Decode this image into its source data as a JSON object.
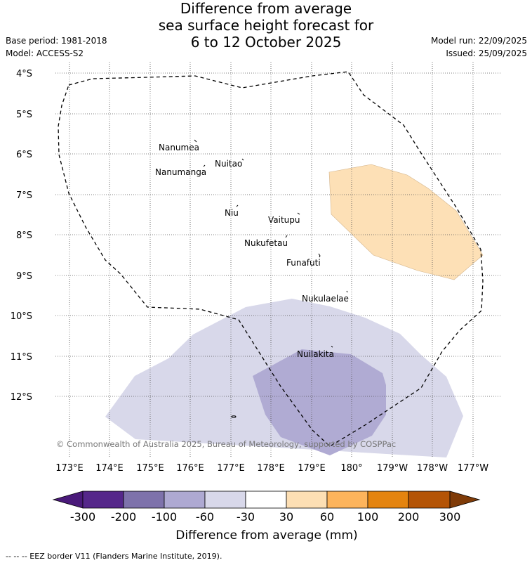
{
  "title": {
    "line1": "Difference from average",
    "line2": "sea surface height forecast for",
    "line3": "6 to 12 October 2025"
  },
  "meta": {
    "base_period": "Base period: 1981-2018",
    "model": "Model: ACCESS-S2",
    "model_run": "Model run: 22/09/2025",
    "issued": "Issued: 25/09/2025"
  },
  "map": {
    "lat_labels": [
      "4°S",
      "5°S",
      "6°S",
      "7°S",
      "8°S",
      "9°S",
      "10°S",
      "11°S",
      "12°S"
    ],
    "lon_labels": [
      "173°E",
      "174°E",
      "175°E",
      "176°E",
      "177°E",
      "178°E",
      "179°E",
      "180°",
      "179°W",
      "178°W",
      "177°W"
    ],
    "places": [
      "Nanumea",
      "Nuitao",
      "Nanumanga",
      "Niu",
      "Vaitupu",
      "Nukufetau",
      "Funafuti",
      "Nukulaelae",
      "Nuilakita"
    ],
    "copyright": "© Commonwealth of Australia 2025, Bureau of Meteorology, supported by COSPPac"
  },
  "colorbar": {
    "title": "Difference from average (mm)",
    "ticks": [
      "-300",
      "-200",
      "-100",
      "-60",
      "-30",
      "30",
      "60",
      "100",
      "200",
      "300"
    ],
    "colors": [
      "#4a1a7a",
      "#55278a",
      "#7e72ab",
      "#aea9d2",
      "#d8d8ea",
      "#ffffff",
      "#fddfb4",
      "#fdb45c",
      "#e4840f",
      "#b45406",
      "#7f3b08"
    ]
  },
  "footer": {
    "legend_text": "--  --  -- EEZ border V11 (Flanders Marine Institute, 2019)."
  }
}
